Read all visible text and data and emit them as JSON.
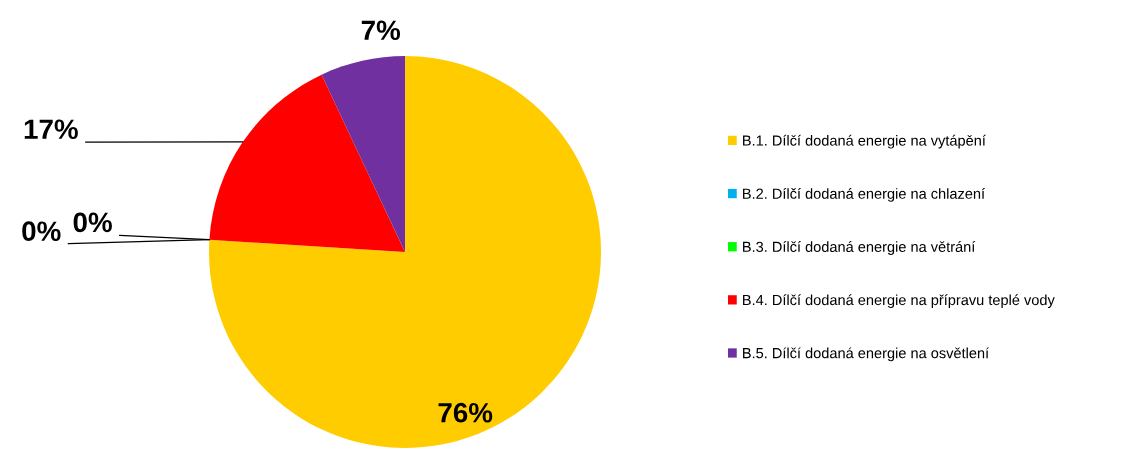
{
  "chart_data": {
    "type": "pie",
    "categories": [
      "B.1. Dílčí dodaná energie na vytápění",
      "B.2. Dílčí dodaná energie na chlazení",
      "B.3. Dílčí dodaná energie na větrání",
      "B.4. Dílčí dodaná energie na přípravu teplé vody",
      "B.5. Dílčí dodaná energie na osvětlení"
    ],
    "values": [
      76,
      0,
      0,
      17,
      7
    ],
    "colors": [
      "#ffcc00",
      "#00b0f0",
      "#00ff00",
      "#ff0000",
      "#7030a0"
    ],
    "value_labels": [
      "76%",
      "0%",
      "0%",
      "17%",
      "7%"
    ],
    "legend": "right"
  }
}
